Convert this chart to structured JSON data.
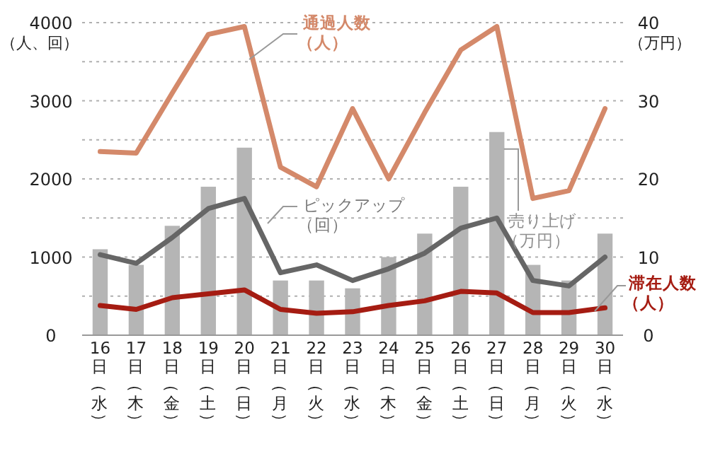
{
  "chart_data": {
    "type": "line",
    "categories": [
      "16日（水）",
      "17日（木）",
      "18日（金）",
      "19日（土）",
      "20日（日）",
      "21日（月）",
      "22日（火）",
      "23日（水）",
      "24日（木）",
      "25日（金）",
      "26日（土）",
      "27日（日）",
      "28日（月）",
      "29日（火）",
      "30日（水）"
    ],
    "series": [
      {
        "name": "売り上げ（万円）",
        "type": "bar",
        "axis": "y2",
        "color": "#b5b5b5",
        "values": [
          11,
          9,
          14,
          19,
          24,
          7,
          7,
          6,
          10,
          13,
          19,
          26,
          9,
          7,
          13
        ]
      },
      {
        "name": "通過人数（人）",
        "color": "#d4896a",
        "values": [
          2350,
          2330,
          3100,
          3850,
          3950,
          2150,
          1900,
          2900,
          2000,
          2850,
          3650,
          3950,
          1750,
          1850,
          2900
        ]
      },
      {
        "name": "ピックアップ（回）",
        "color": "#666666",
        "values": [
          1030,
          920,
          1250,
          1620,
          1750,
          800,
          900,
          700,
          850,
          1050,
          1370,
          1500,
          700,
          630,
          1000
        ]
      },
      {
        "name": "滞在人数（人）",
        "color": "#a51c12",
        "values": [
          380,
          330,
          480,
          530,
          580,
          330,
          280,
          300,
          380,
          440,
          560,
          540,
          290,
          290,
          350
        ]
      }
    ],
    "ylabel": "（人、回）",
    "y2label": "（万円）",
    "ylim": [
      0,
      4000
    ],
    "yticks": [
      0,
      {
        "value": 500,
        "label": null
      },
      1000,
      {
        "value": 1500,
        "label": null
      },
      2000,
      {
        "value": 2500,
        "label": null
      },
      3000,
      {
        "value": 3500,
        "label": null
      },
      4000
    ],
    "y2lim": [
      0,
      40
    ],
    "y2ticks": [
      0,
      10,
      20,
      30,
      40
    ],
    "grid": "y",
    "legend": false,
    "line_style": "solid",
    "marker": "none"
  }
}
